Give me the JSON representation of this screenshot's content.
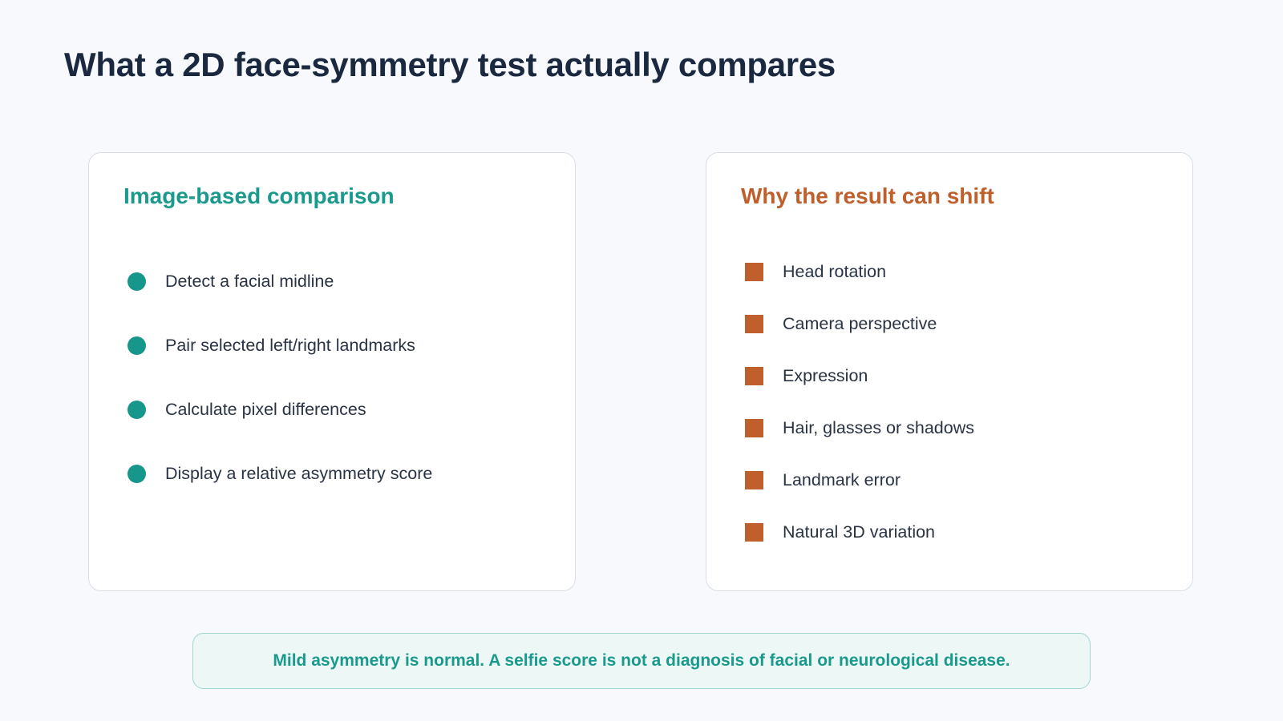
{
  "title": "What a 2D face-symmetry test actually compares",
  "left_card": {
    "heading": "Image-based comparison",
    "items": [
      "Detect a facial midline",
      "Pair selected left/right landmarks",
      "Calculate pixel differences",
      "Display a relative asymmetry score"
    ]
  },
  "right_card": {
    "heading": "Why the result can shift",
    "items": [
      "Head rotation",
      "Camera perspective",
      "Expression",
      "Hair, glasses or shadows",
      "Landmark error",
      "Natural 3D variation"
    ]
  },
  "footer": {
    "note": "Mild asymmetry is normal. A selfie score is not a diagnosis of facial or neurological disease."
  },
  "colors": {
    "title": "#1a2840",
    "teal_accent": "#1a9a8c",
    "orange_accent": "#bf5f2b",
    "background": "#f7f9fc"
  },
  "icons": {
    "left_bullet": "circle-bullet-icon",
    "right_bullet": "square-bullet-icon"
  }
}
